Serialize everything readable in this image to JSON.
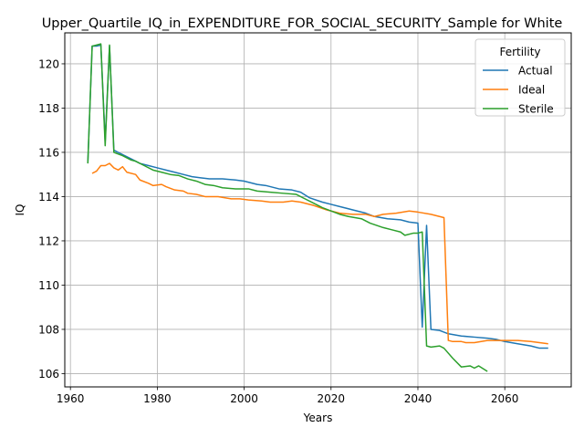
{
  "chart_data": {
    "type": "line",
    "title": "Upper_Quartile_IQ_in_EXPENDITURE_FOR_SOCIAL_SECURITY_Sample for White",
    "xlabel": "Years",
    "ylabel": "IQ",
    "xlim": [
      1958.7,
      2075.3
    ],
    "ylim": [
      105.4,
      121.4
    ],
    "xticks": [
      1960,
      1980,
      2000,
      2020,
      2040,
      2060
    ],
    "yticks": [
      106,
      108,
      110,
      112,
      114,
      116,
      118,
      120
    ],
    "grid": true,
    "legend": {
      "title": "Fertility",
      "position": "upper right"
    },
    "series": [
      {
        "name": "Actual",
        "color": "#1f77b4",
        "points": [
          [
            1964,
            115.5
          ],
          [
            1965,
            120.8
          ],
          [
            1966,
            120.8
          ],
          [
            1967,
            120.85
          ],
          [
            1968,
            116.5
          ],
          [
            1969,
            120.8
          ],
          [
            1970,
            116.1
          ],
          [
            1972,
            115.9
          ],
          [
            1974,
            115.7
          ],
          [
            1976,
            115.5
          ],
          [
            1978,
            115.4
          ],
          [
            1980,
            115.3
          ],
          [
            1982,
            115.2
          ],
          [
            1984,
            115.1
          ],
          [
            1986,
            115.0
          ],
          [
            1988,
            114.9
          ],
          [
            1990,
            114.85
          ],
          [
            1992,
            114.8
          ],
          [
            1995,
            114.8
          ],
          [
            1998,
            114.75
          ],
          [
            2000,
            114.7
          ],
          [
            2003,
            114.55
          ],
          [
            2005,
            114.5
          ],
          [
            2008,
            114.35
          ],
          [
            2011,
            114.3
          ],
          [
            2013,
            114.2
          ],
          [
            2015,
            113.95
          ],
          [
            2018,
            113.75
          ],
          [
            2020,
            113.65
          ],
          [
            2022,
            113.55
          ],
          [
            2025,
            113.4
          ],
          [
            2028,
            113.25
          ],
          [
            2030,
            113.1
          ],
          [
            2033,
            113.0
          ],
          [
            2036,
            112.95
          ],
          [
            2038,
            112.85
          ],
          [
            2040,
            112.8
          ],
          [
            2041,
            108.1
          ],
          [
            2042,
            112.7
          ],
          [
            2043,
            108.0
          ],
          [
            2045,
            107.95
          ],
          [
            2047,
            107.8
          ],
          [
            2050,
            107.7
          ],
          [
            2053,
            107.65
          ],
          [
            2056,
            107.6
          ],
          [
            2058,
            107.55
          ],
          [
            2060,
            107.45
          ],
          [
            2063,
            107.35
          ],
          [
            2066,
            107.25
          ],
          [
            2068,
            107.15
          ],
          [
            2070,
            107.15
          ]
        ]
      },
      {
        "name": "Ideal",
        "color": "#ff7f0e",
        "points": [
          [
            1965,
            115.05
          ],
          [
            1966,
            115.15
          ],
          [
            1967,
            115.4
          ],
          [
            1968,
            115.4
          ],
          [
            1969,
            115.5
          ],
          [
            1970,
            115.3
          ],
          [
            1971,
            115.2
          ],
          [
            1972,
            115.35
          ],
          [
            1973,
            115.1
          ],
          [
            1975,
            115.0
          ],
          [
            1976,
            114.75
          ],
          [
            1978,
            114.6
          ],
          [
            1979,
            114.5
          ],
          [
            1981,
            114.55
          ],
          [
            1982,
            114.45
          ],
          [
            1984,
            114.3
          ],
          [
            1986,
            114.25
          ],
          [
            1987,
            114.15
          ],
          [
            1989,
            114.1
          ],
          [
            1991,
            114.0
          ],
          [
            1994,
            114.0
          ],
          [
            1997,
            113.9
          ],
          [
            1999,
            113.9
          ],
          [
            2001,
            113.85
          ],
          [
            2004,
            113.8
          ],
          [
            2006,
            113.75
          ],
          [
            2009,
            113.75
          ],
          [
            2011,
            113.8
          ],
          [
            2013,
            113.75
          ],
          [
            2016,
            113.6
          ],
          [
            2019,
            113.4
          ],
          [
            2022,
            113.25
          ],
          [
            2025,
            113.2
          ],
          [
            2028,
            113.2
          ],
          [
            2030,
            113.1
          ],
          [
            2032,
            113.2
          ],
          [
            2035,
            113.25
          ],
          [
            2038,
            113.35
          ],
          [
            2040,
            113.3
          ],
          [
            2043,
            113.2
          ],
          [
            2046,
            113.05
          ],
          [
            2047,
            107.5
          ],
          [
            2048,
            107.45
          ],
          [
            2050,
            107.45
          ],
          [
            2051,
            107.4
          ],
          [
            2053,
            107.4
          ],
          [
            2056,
            107.5
          ],
          [
            2058,
            107.5
          ],
          [
            2061,
            107.5
          ],
          [
            2063,
            107.5
          ],
          [
            2066,
            107.45
          ],
          [
            2068,
            107.4
          ],
          [
            2070,
            107.35
          ]
        ]
      },
      {
        "name": "Sterile",
        "color": "#2ca02c",
        "points": [
          [
            1964,
            115.5
          ],
          [
            1965,
            120.8
          ],
          [
            1966,
            120.85
          ],
          [
            1967,
            120.9
          ],
          [
            1968,
            116.3
          ],
          [
            1969,
            120.85
          ],
          [
            1970,
            116.0
          ],
          [
            1972,
            115.85
          ],
          [
            1974,
            115.65
          ],
          [
            1975,
            115.6
          ],
          [
            1977,
            115.4
          ],
          [
            1979,
            115.2
          ],
          [
            1981,
            115.1
          ],
          [
            1983,
            115.0
          ],
          [
            1985,
            114.95
          ],
          [
            1987,
            114.8
          ],
          [
            1989,
            114.7
          ],
          [
            1991,
            114.55
          ],
          [
            1993,
            114.5
          ],
          [
            1995,
            114.4
          ],
          [
            1998,
            114.35
          ],
          [
            2001,
            114.35
          ],
          [
            2003,
            114.25
          ],
          [
            2006,
            114.2
          ],
          [
            2009,
            114.15
          ],
          [
            2012,
            114.1
          ],
          [
            2014,
            113.9
          ],
          [
            2016,
            113.7
          ],
          [
            2018,
            113.5
          ],
          [
            2020,
            113.35
          ],
          [
            2022,
            113.2
          ],
          [
            2024,
            113.1
          ],
          [
            2027,
            113.0
          ],
          [
            2029,
            112.8
          ],
          [
            2032,
            112.6
          ],
          [
            2034,
            112.5
          ],
          [
            2036,
            112.4
          ],
          [
            2037,
            112.25
          ],
          [
            2039,
            112.35
          ],
          [
            2040,
            112.35
          ],
          [
            2041,
            112.4
          ],
          [
            2042,
            107.25
          ],
          [
            2043,
            107.2
          ],
          [
            2045,
            107.25
          ],
          [
            2046,
            107.15
          ],
          [
            2048,
            106.7
          ],
          [
            2050,
            106.3
          ],
          [
            2052,
            106.35
          ],
          [
            2053,
            106.25
          ],
          [
            2054,
            106.35
          ],
          [
            2056,
            106.1
          ]
        ]
      }
    ]
  }
}
